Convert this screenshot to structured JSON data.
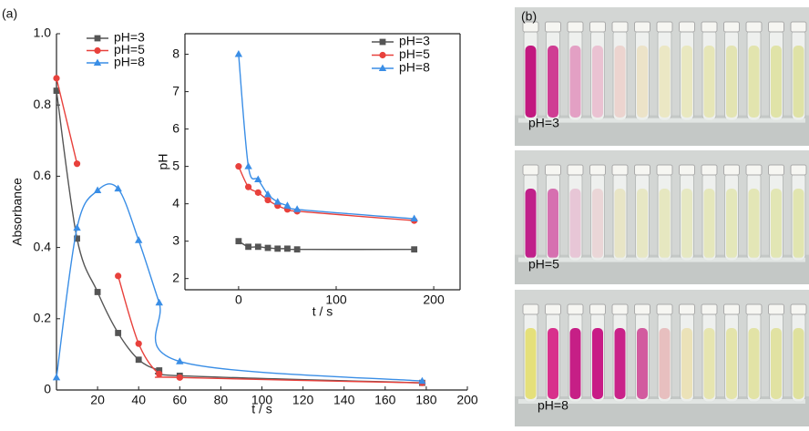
{
  "panel_labels": {
    "a": "(a)",
    "b": "(b)"
  },
  "photo_labels": [
    "pH=3",
    "pH=5",
    "pH=8"
  ],
  "chart_data": [
    {
      "type": "line",
      "xlabel": "t / s",
      "ylabel": "Absorbance",
      "xlim": [
        0,
        200
      ],
      "xticks": [
        20,
        40,
        60,
        80,
        100,
        120,
        140,
        160,
        180,
        200
      ],
      "ylim": [
        0,
        1
      ],
      "yticks": [
        0,
        0.2,
        0.4,
        0.6,
        0.8,
        {
          "value": 1,
          "label": "1.0"
        }
      ],
      "legend": "upper-left",
      "x": [
        0,
        10,
        20,
        30,
        40,
        50,
        60,
        178
      ],
      "series": [
        {
          "name": "pH=3",
          "color": "#555555",
          "marker": "square",
          "values": [
            0.84,
            0.425,
            0.275,
            0.16,
            0.085,
            0.055,
            0.04,
            0.02
          ]
        },
        {
          "name": "pH=5",
          "color": "#e8413c",
          "marker": "circle",
          "values": [
            0.875,
            0.635,
            null,
            0.32,
            0.13,
            0.045,
            0.035,
            0.02
          ]
        },
        {
          "name": "pH=8",
          "color": "#3a8ee6",
          "marker": "triangle",
          "values": [
            0.035,
            0.455,
            0.56,
            0.565,
            0.42,
            0.245,
            0.08,
            0.025
          ]
        }
      ]
    },
    {
      "type": "line",
      "xlabel": "t / s",
      "ylabel": "pH",
      "xlim": [
        -55,
        227
      ],
      "xticks": [
        0,
        100,
        200
      ],
      "ylim": [
        1.7,
        8.55
      ],
      "yticks": [
        2,
        3,
        4,
        5,
        6,
        7,
        8
      ],
      "legend": "upper-right",
      "x": [
        0,
        10,
        20,
        30,
        40,
        50,
        60,
        180
      ],
      "series": [
        {
          "name": "pH=3",
          "color": "#555555",
          "marker": "square",
          "values": [
            3.0,
            2.85,
            2.85,
            2.82,
            2.8,
            2.8,
            2.78,
            2.78
          ]
        },
        {
          "name": "pH=5",
          "color": "#e8413c",
          "marker": "circle",
          "values": [
            5.0,
            4.45,
            4.3,
            4.1,
            3.95,
            3.85,
            3.8,
            3.55
          ]
        },
        {
          "name": "pH=8",
          "color": "#3a8ee6",
          "marker": "triangle",
          "values": [
            8.0,
            5.0,
            4.65,
            4.25,
            4.05,
            3.95,
            3.85,
            3.6
          ]
        }
      ]
    }
  ]
}
